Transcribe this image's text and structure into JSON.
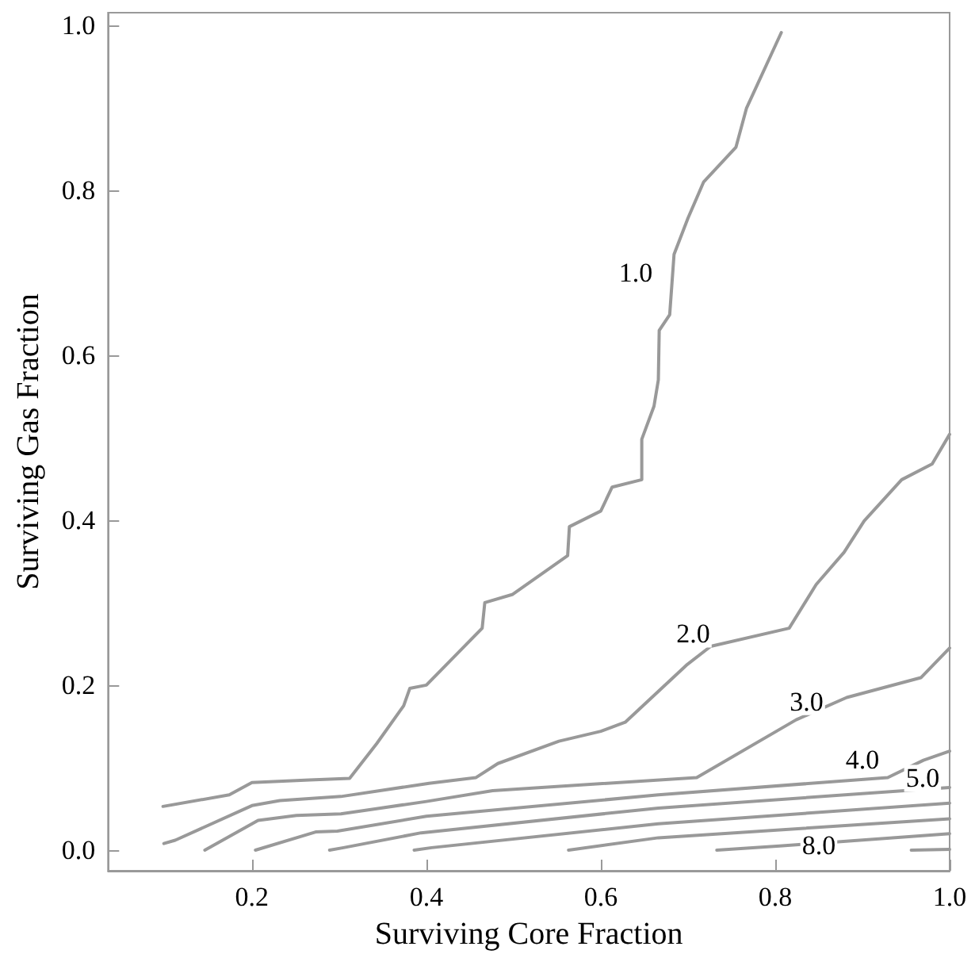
{
  "chart_data": {
    "type": "line",
    "xlabel": "Surviving Core Fraction",
    "ylabel": "Surviving Gas Fraction",
    "xlim": [
      0.035,
      1.0
    ],
    "ylim": [
      -0.025,
      1.015
    ],
    "xticks": [
      0.2,
      0.4,
      0.6,
      0.8,
      {
        "value": 1.0,
        "label": "1.0"
      }
    ],
    "yticks": [
      {
        "value": 0,
        "label": "0.0"
      },
      0.2,
      0.4,
      0.6,
      0.8,
      {
        "value": 1.0,
        "label": "1.0"
      }
    ],
    "grid": false,
    "marker": "none",
    "line_style": "solid",
    "series": [
      {
        "color": "#999999",
        "x": [
          0.098,
          0.174,
          0.2,
          0.266,
          0.312,
          0.343,
          0.374,
          0.381,
          0.4,
          0.464,
          0.467,
          0.499,
          0.562,
          0.564,
          0.6,
          0.613,
          0.647,
          0.647,
          0.661,
          0.666,
          0.667,
          0.679,
          0.684,
          0.7,
          0.718,
          0.755,
          0.767,
          0.807
        ],
        "values": [
          0.053,
          0.067,
          0.082,
          0.085,
          0.087,
          0.129,
          0.175,
          0.196,
          0.2,
          0.269,
          0.3,
          0.31,
          0.357,
          0.392,
          0.411,
          0.44,
          0.449,
          0.498,
          0.538,
          0.57,
          0.63,
          0.649,
          0.722,
          0.766,
          0.81,
          0.852,
          0.899,
          0.991
        ]
      },
      {
        "color": "#999999",
        "x": [
          0.099,
          0.112,
          0.2,
          0.232,
          0.302,
          0.403,
          0.457,
          0.482,
          0.552,
          0.6,
          0.628,
          0.698,
          0.726,
          0.816,
          0.847,
          0.879,
          0.902,
          0.945,
          0.98,
          1.0
        ],
        "values": [
          0.008,
          0.012,
          0.054,
          0.06,
          0.065,
          0.081,
          0.088,
          0.105,
          0.132,
          0.144,
          0.155,
          0.224,
          0.247,
          0.269,
          0.322,
          0.361,
          0.399,
          0.449,
          0.468,
          0.504
        ]
      },
      {
        "color": "#999999",
        "x": [
          0.146,
          0.207,
          0.251,
          0.302,
          0.4,
          0.476,
          0.71,
          0.824,
          0.882,
          0.967,
          1.0
        ],
        "values": [
          0.0,
          0.036,
          0.042,
          0.044,
          0.059,
          0.072,
          0.088,
          0.158,
          0.185,
          0.209,
          0.245
        ]
      },
      {
        "color": "#999999",
        "x": [
          0.204,
          0.273,
          0.298,
          0.4,
          0.666,
          0.929,
          0.97,
          1.0
        ],
        "values": [
          0.0,
          0.022,
          0.023,
          0.041,
          0.067,
          0.088,
          0.109,
          0.12
        ]
      },
      {
        "color": "#999999",
        "x": [
          0.289,
          0.305,
          0.394,
          0.666,
          1.0
        ],
        "values": [
          0.0,
          0.003,
          0.021,
          0.051,
          0.076
        ]
      },
      {
        "color": "#999999",
        "x": [
          0.386,
          0.406,
          0.666,
          1.0
        ],
        "values": [
          0.0,
          0.003,
          0.032,
          0.057
        ]
      },
      {
        "color": "#999999",
        "x": [
          0.563,
          0.666,
          1.0
        ],
        "values": [
          0.0,
          0.015,
          0.038
        ]
      },
      {
        "color": "#999999",
        "x": [
          0.733,
          0.805,
          1.0
        ],
        "values": [
          0.0,
          0.005,
          0.02
        ]
      },
      {
        "color": "#999999",
        "x": [
          0.956,
          1.0
        ],
        "values": [
          0.0,
          0.001
        ]
      }
    ],
    "annotations": [
      {
        "text": "1.0",
        "x": 0.64,
        "y": 0.7
      },
      {
        "text": "2.0",
        "x": 0.706,
        "y": 0.262
      },
      {
        "text": "3.0",
        "x": 0.836,
        "y": 0.18
      },
      {
        "text": "4.0",
        "x": 0.9,
        "y": 0.11
      },
      {
        "text": "5.0",
        "x": 0.969,
        "y": 0.087
      },
      {
        "text": "8.0",
        "x": 0.85,
        "y": 0.006
      }
    ]
  }
}
